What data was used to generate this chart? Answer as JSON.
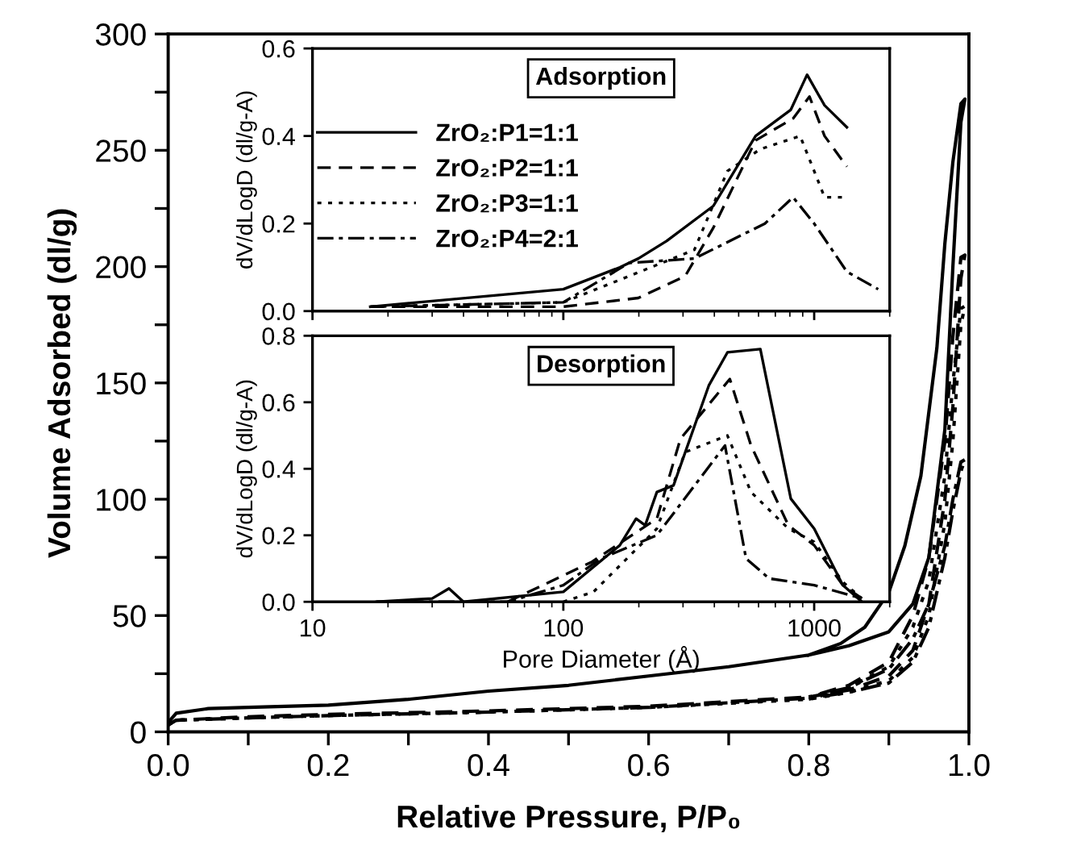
{
  "chart_data": [
    {
      "type": "line",
      "xlabel": "Relative Pressure, P/P₀",
      "ylabel": "Volume Adsorbed (dl/g)",
      "xlim": [
        0,
        1
      ],
      "ylim": [
        0,
        300
      ],
      "xticks": [
        {
          "value": 0,
          "label": "0.0"
        },
        {
          "value": 0.1,
          "label": null
        },
        {
          "value": 0.2,
          "label": "0.2"
        },
        {
          "value": 0.3,
          "label": null
        },
        {
          "value": 0.4,
          "label": "0.4"
        },
        {
          "value": 0.5,
          "label": null
        },
        {
          "value": 0.6,
          "label": "0.6"
        },
        {
          "value": 0.7,
          "label": null
        },
        {
          "value": 0.8,
          "label": "0.8"
        },
        {
          "value": 0.9,
          "label": null
        },
        {
          "value": 1,
          "label": "1.0"
        }
      ],
      "yticks": [
        0,
        {
          "value": 25,
          "label": null
        },
        50,
        {
          "value": 75,
          "label": null
        },
        100,
        {
          "value": 125,
          "label": null
        },
        150,
        {
          "value": 175,
          "label": null
        },
        200,
        {
          "value": 225,
          "label": null
        },
        250,
        {
          "value": 275,
          "label": null
        },
        300
      ],
      "legend": false,
      "series": [
        {
          "color": "#000000",
          "line_style": "solid",
          "x": [
            0,
            0.01,
            0.05,
            0.1,
            0.2,
            0.3,
            0.4,
            0.5,
            0.6,
            0.7,
            0.8,
            0.85,
            0.9,
            0.93,
            0.95,
            0.97,
            0.98,
            0.99,
            0.995,
            0.99,
            0.98,
            0.97,
            0.96,
            0.94,
            0.92,
            0.9,
            0.87,
            0.84,
            0.8
          ],
          "values": [
            4,
            8,
            10,
            10.5,
            11.5,
            14,
            17.5,
            20,
            24,
            28,
            33,
            37,
            43,
            55,
            75,
            130,
            200,
            262,
            272,
            270,
            245,
            210,
            165,
            110,
            80,
            60,
            45,
            38,
            33
          ]
        },
        {
          "color": "#000000",
          "line_style": "dashed",
          "x": [
            0,
            0.01,
            0.1,
            0.2,
            0.4,
            0.6,
            0.8,
            0.85,
            0.9,
            0.93,
            0.95,
            0.97,
            0.98,
            0.99,
            0.995,
            0.99,
            0.98,
            0.97,
            0.95,
            0.93,
            0.9,
            0.85,
            0.8
          ],
          "values": [
            3,
            5,
            6.5,
            7.5,
            9,
            11,
            15,
            18,
            24,
            35,
            55,
            100,
            140,
            195,
            205,
            204,
            170,
            125,
            75,
            50,
            30,
            20,
            15
          ]
        },
        {
          "color": "#000000",
          "line_style": "dotted",
          "x": [
            0,
            0.01,
            0.1,
            0.2,
            0.4,
            0.6,
            0.8,
            0.85,
            0.9,
            0.93,
            0.95,
            0.97,
            0.98,
            0.99,
            0.995,
            0.99,
            0.98,
            0.97,
            0.95,
            0.93,
            0.9,
            0.85,
            0.8
          ],
          "values": [
            3,
            5,
            6,
            7,
            8.5,
            10.5,
            14,
            17,
            22,
            32,
            50,
            90,
            125,
            175,
            183,
            182,
            150,
            110,
            65,
            45,
            28,
            19,
            14
          ]
        },
        {
          "color": "#000000",
          "line_style": "dashdot",
          "x": [
            0,
            0.01,
            0.1,
            0.2,
            0.4,
            0.6,
            0.8,
            0.85,
            0.9,
            0.93,
            0.95,
            0.97,
            0.98,
            0.99,
            0.995,
            0.99,
            0.98,
            0.97,
            0.95,
            0.93,
            0.9,
            0.85,
            0.8
          ],
          "values": [
            3,
            5,
            6,
            7,
            8.5,
            10.5,
            14.5,
            17,
            21,
            30,
            45,
            75,
            95,
            112,
            117,
            116,
            100,
            80,
            55,
            40,
            27,
            19,
            15
          ]
        }
      ]
    },
    {
      "type": "line",
      "title": "Adsorption",
      "ylabel": "dV/dLogD (dl/g-A)",
      "log": "x",
      "xlim": [
        10,
        2000
      ],
      "ylim": [
        0,
        0.6
      ],
      "xticks": [
        10,
        100,
        1000
      ],
      "yticks": [
        {
          "value": 0,
          "label": "0.0"
        },
        0.2,
        0.4,
        0.6
      ],
      "tick_labels": "y",
      "grid": false,
      "legend": "left",
      "series": [
        {
          "name": "ZrO₂:P1=1:1",
          "color": "#000000",
          "line_style": "solid",
          "x": [
            17,
            100,
            168,
            199,
            258,
            396,
            584,
            807,
            937,
            1100,
            1350
          ],
          "values": [
            0.01,
            0.05,
            0.1,
            0.12,
            0.16,
            0.24,
            0.4,
            0.46,
            0.54,
            0.47,
            0.42
          ]
        },
        {
          "name": "ZrO₂:P2=1:1",
          "color": "#000000",
          "line_style": "dashed",
          "x": [
            17,
            100,
            199,
            306,
            396,
            584,
            824,
            958,
            1100,
            1350
          ],
          "values": [
            0.01,
            0.01,
            0.03,
            0.08,
            0.19,
            0.39,
            0.44,
            0.49,
            0.4,
            0.33
          ]
        },
        {
          "name": "ZrO₂:P3=1:1",
          "color": "#000000",
          "line_style": "dotted",
          "x": [
            17,
            100,
            183,
            333,
            451,
            610,
            879,
            1000,
            1100,
            1350
          ],
          "values": [
            0.01,
            0.02,
            0.08,
            0.14,
            0.32,
            0.37,
            0.4,
            0.32,
            0.26,
            0.26
          ]
        },
        {
          "name": "ZrO₂:P4=2:1",
          "color": "#000000",
          "line_style": "dashdot",
          "x": [
            17,
            100,
            183,
            333,
            636,
            824,
            1000,
            1350,
            1800
          ],
          "values": [
            0.01,
            0.02,
            0.11,
            0.12,
            0.2,
            0.26,
            0.2,
            0.09,
            0.05
          ]
        }
      ]
    },
    {
      "type": "line",
      "title": "Desorption",
      "xlabel": "Pore Diameter (Å)",
      "ylabel": "dV/dLogD (dl/g-A)",
      "log": "x",
      "xlim": [
        10,
        2000
      ],
      "ylim": [
        0,
        0.8
      ],
      "xticks": [
        10,
        100,
        1000
      ],
      "yticks": [
        {
          "value": 0,
          "label": "0.0"
        },
        0.2,
        0.4,
        0.6,
        0.8
      ],
      "grid": false,
      "legend": false,
      "series": [
        {
          "color": "#000000",
          "line_style": "solid",
          "x": [
            18,
            30,
            35,
            40,
            100,
            168,
            195,
            212,
            236,
            275,
            380,
            451,
            610,
            807,
            1000,
            1300,
            1550
          ],
          "values": [
            0,
            0.01,
            0.04,
            0,
            0.03,
            0.17,
            0.25,
            0.23,
            0.33,
            0.35,
            0.65,
            0.75,
            0.76,
            0.31,
            0.22,
            0.05,
            0
          ]
        },
        {
          "color": "#000000",
          "line_style": "dashed",
          "x": [
            60,
            130,
            236,
            293,
            461,
            560,
            789,
            1000,
            1300,
            1550
          ],
          "values": [
            0,
            0.12,
            0.25,
            0.49,
            0.67,
            0.47,
            0.23,
            0.17,
            0.05,
            0.01
          ]
        },
        {
          "color": "#000000",
          "line_style": "dotted",
          "x": [
            100,
            132,
            236,
            306,
            451,
            560,
            789,
            1000,
            1300,
            1550
          ],
          "values": [
            0,
            0.03,
            0.22,
            0.45,
            0.5,
            0.33,
            0.22,
            0.18,
            0.06,
            0.01
          ]
        },
        {
          "color": "#000000",
          "line_style": "dashdot",
          "x": [
            18,
            60,
            100,
            141,
            236,
            441,
            535,
            662,
            1000,
            1550
          ],
          "values": [
            0,
            0,
            0.05,
            0.13,
            0.2,
            0.47,
            0.13,
            0.07,
            0.05,
            0.01
          ]
        }
      ]
    }
  ]
}
